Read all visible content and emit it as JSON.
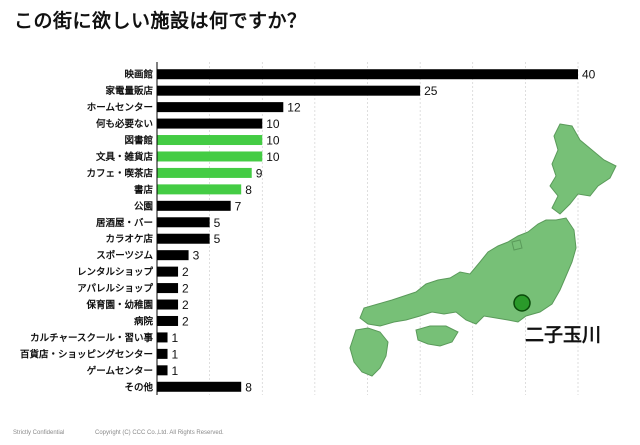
{
  "title": "この街に欲しい施設は何ですか？",
  "chart_data": {
    "type": "bar",
    "orientation": "horizontal",
    "categories": [
      "映画館",
      "家電量販店",
      "ホームセンター",
      "何も必要ない",
      "図書館",
      "文具・雑貨店",
      "カフェ・喫茶店",
      "書店",
      "公園",
      "居酒屋・バー",
      "カラオケ店",
      "スポーツジム",
      "レンタルショップ",
      "アパレルショップ",
      "保育園・幼稚園",
      "病院",
      "カルチャースクール・習い事",
      "百貨店・ショッピングセンター",
      "ゲームセンター",
      "その他"
    ],
    "values": [
      40,
      25,
      12,
      10,
      10,
      10,
      9,
      8,
      7,
      5,
      5,
      3,
      2,
      2,
      2,
      2,
      1,
      1,
      1,
      8
    ],
    "highlighted": [
      "図書館",
      "文具・雑貨店",
      "カフェ・喫茶店",
      "書店"
    ],
    "bar_color": "#000000",
    "highlight_color": "#44cc44",
    "xlim": [
      0,
      42
    ],
    "grid": "vertical dashed",
    "title": "この街に欲しい施設は何ですか？"
  },
  "map": {
    "label": "二子玉川",
    "land_color": "#77c077",
    "marker_color": "#2a9a2a"
  },
  "footer": {
    "confidential": "Strictly Confidential",
    "copyright": "Copyright (C) CCC Co.,Ltd. All Rights Reserved."
  }
}
